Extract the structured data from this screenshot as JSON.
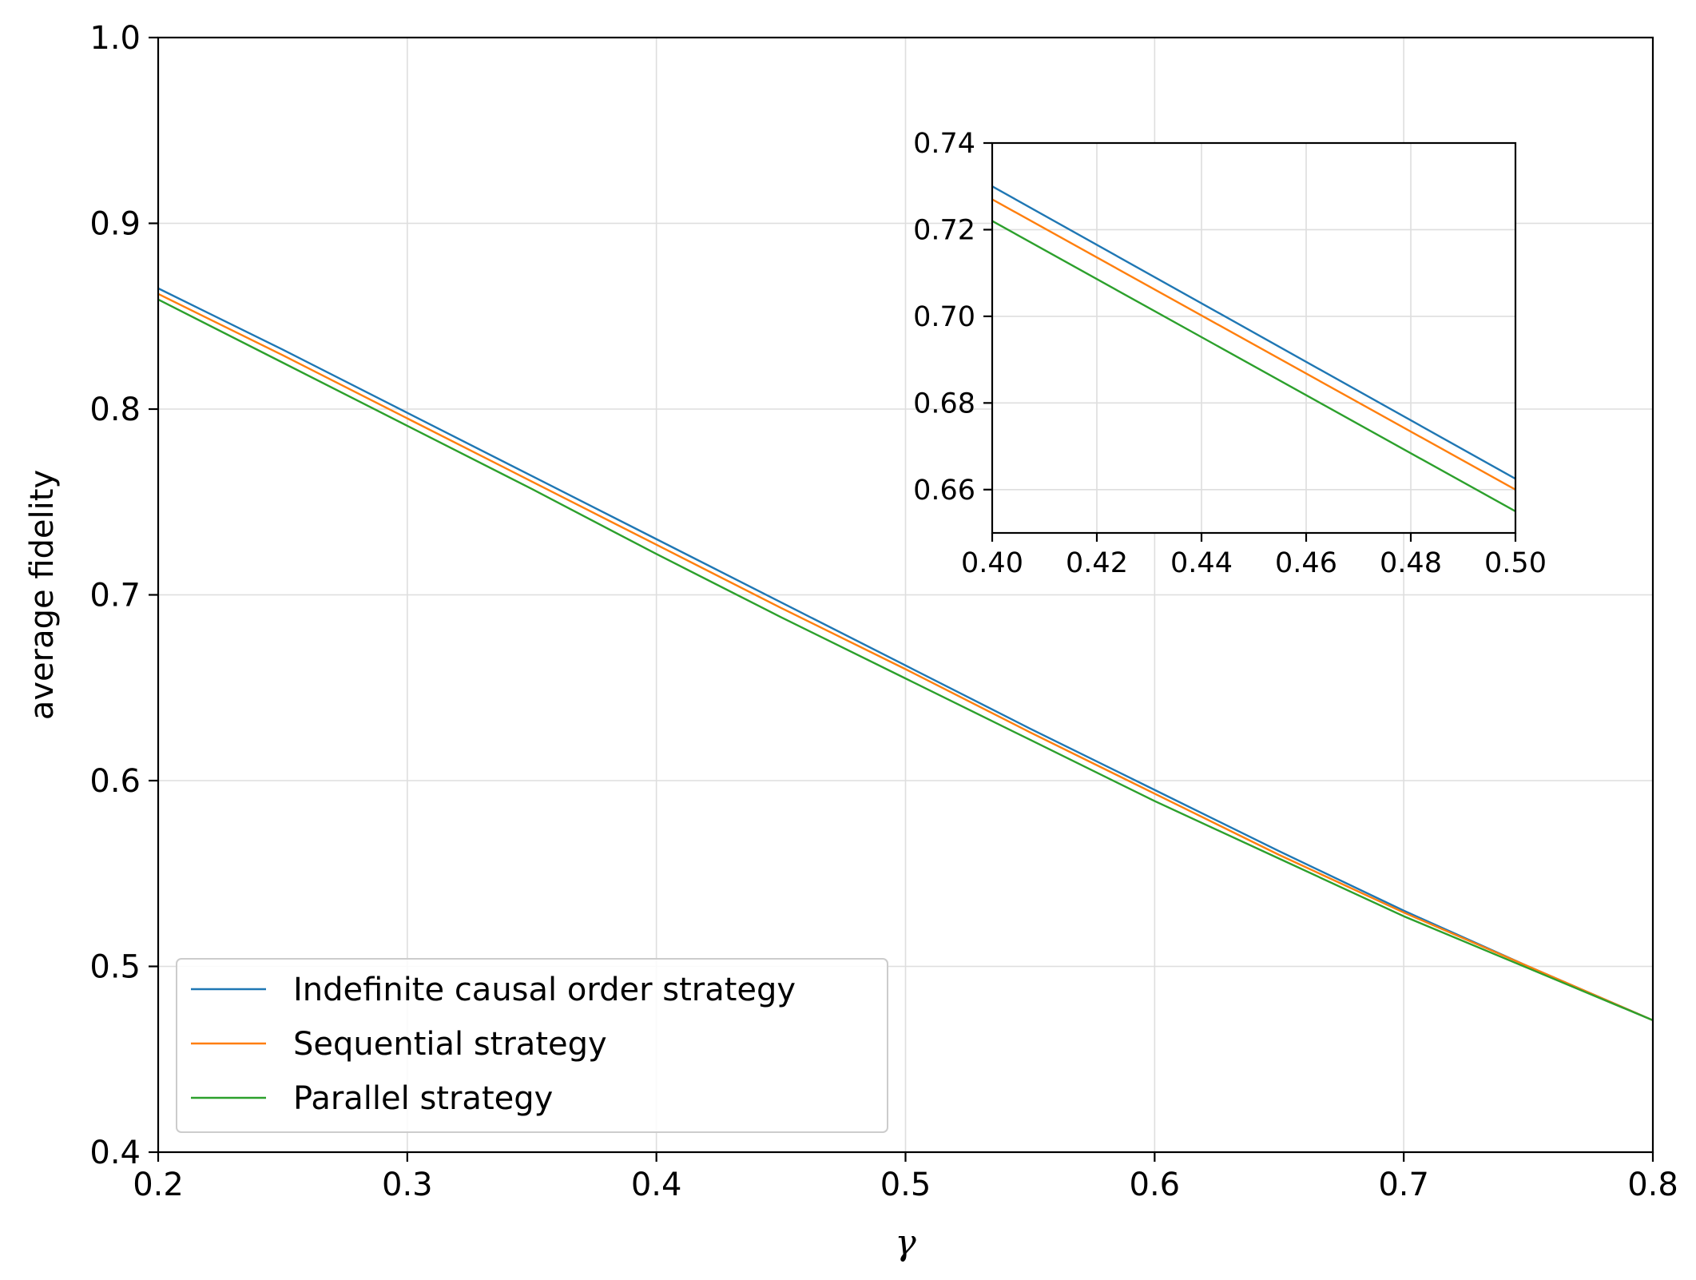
{
  "chart_data": [
    {
      "type": "line",
      "title": "",
      "xlabel": "γ",
      "ylabel": "average fidelity",
      "xlim": [
        0.2,
        0.8
      ],
      "ylim": [
        0.4,
        1.0
      ],
      "xticks": [
        0.2,
        0.3,
        0.4,
        0.5,
        0.6,
        0.7,
        0.8
      ],
      "xtick_labels": [
        "0.2",
        "0.3",
        "0.4",
        "0.5",
        "0.6",
        "0.7",
        "0.8"
      ],
      "yticks": [
        0.4,
        0.5,
        0.6,
        0.7,
        0.8,
        0.9,
        1.0
      ],
      "ytick_labels": [
        "0.4",
        "0.5",
        "0.6",
        "0.7",
        "0.8",
        "0.9",
        "1.0"
      ],
      "grid": true,
      "legend_position": "lower-left",
      "x": [
        0.2,
        0.25,
        0.3,
        0.35,
        0.4,
        0.45,
        0.5,
        0.55,
        0.6,
        0.65,
        0.7,
        0.75,
        0.8
      ],
      "series": [
        {
          "name": "Indefinite causal order strategy",
          "color": "#1f77b4",
          "values": [
            0.865,
            0.832,
            0.798,
            0.764,
            0.73,
            0.696,
            0.662,
            0.628,
            0.595,
            0.562,
            0.53,
            0.5,
            0.471
          ]
        },
        {
          "name": "Sequential strategy",
          "color": "#ff7f0e",
          "values": [
            0.862,
            0.829,
            0.795,
            0.761,
            0.727,
            0.693,
            0.66,
            0.626,
            0.593,
            0.56,
            0.529,
            0.5,
            0.471
          ]
        },
        {
          "name": "Parallel strategy",
          "color": "#2ca02c",
          "values": [
            0.859,
            0.825,
            0.791,
            0.757,
            0.722,
            0.688,
            0.655,
            0.622,
            0.589,
            0.558,
            0.527,
            0.499,
            0.471
          ]
        }
      ]
    },
    {
      "type": "line",
      "title": "",
      "xlabel": "",
      "ylabel": "",
      "xlim": [
        0.4,
        0.5
      ],
      "ylim": [
        0.65,
        0.74
      ],
      "xticks": [
        0.4,
        0.42,
        0.44,
        0.46,
        0.48,
        0.5
      ],
      "xtick_labels": [
        "0.40",
        "0.42",
        "0.44",
        "0.46",
        "0.48",
        "0.50"
      ],
      "yticks": [
        0.66,
        0.68,
        0.7,
        0.72,
        0.74
      ],
      "ytick_labels": [
        "0.66",
        "0.68",
        "0.70",
        "0.72",
        "0.74"
      ],
      "grid": true,
      "x": [
        0.4,
        0.5
      ],
      "series": [
        {
          "color": "#1f77b4",
          "values": [
            0.73,
            0.6625
          ]
        },
        {
          "color": "#ff7f0e",
          "values": [
            0.727,
            0.66
          ]
        },
        {
          "color": "#2ca02c",
          "values": [
            0.722,
            0.655
          ]
        }
      ]
    }
  ]
}
